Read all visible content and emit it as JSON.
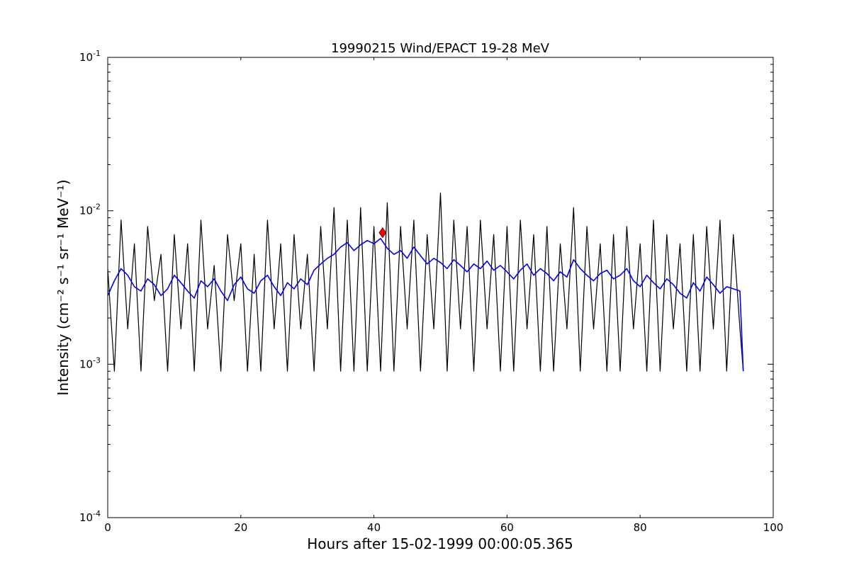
{
  "chart_data": {
    "type": "line",
    "title": "19990215 Wind/EPACT 19-28 MeV",
    "xlabel": "Hours after 15-02-1999 00:00:05.365",
    "ylabel": "Intensity (cm⁻² s⁻¹ sr⁻¹ MeV⁻¹)",
    "xlim": [
      0,
      100
    ],
    "ylim": [
      0.0001,
      0.1
    ],
    "yscale": "log",
    "grid": false,
    "x_ticks": [
      0,
      20,
      40,
      60,
      80,
      100
    ],
    "x_tick_labels": [
      "0",
      "20",
      "40",
      "60",
      "80",
      "100"
    ],
    "y_ticks": [
      0.0001,
      0.001,
      0.01,
      0.1
    ],
    "y_tick_labels": [
      {
        "base": "10",
        "exp": "-4"
      },
      {
        "base": "10",
        "exp": "-3"
      },
      {
        "base": "10",
        "exp": "-2"
      },
      {
        "base": "10",
        "exp": "-1"
      }
    ],
    "series": [
      {
        "color": "#000000",
        "style": "raw intensity",
        "x": [
          0,
          1,
          2,
          3,
          4,
          5,
          6,
          7,
          8,
          9,
          10,
          11,
          12,
          13,
          14,
          15,
          16,
          17,
          18,
          19,
          20,
          21,
          22,
          23,
          24,
          25,
          26,
          27,
          28,
          29,
          30,
          31,
          32,
          33,
          34,
          35,
          36,
          37,
          38,
          39,
          40,
          41,
          42,
          43,
          44,
          45,
          46,
          47,
          48,
          49,
          50,
          51,
          52,
          53,
          54,
          55,
          56,
          57,
          58,
          59,
          60,
          61,
          62,
          63,
          64,
          65,
          66,
          67,
          68,
          69,
          70,
          71,
          72,
          73,
          74,
          75,
          76,
          77,
          78,
          79,
          80,
          81,
          82,
          83,
          84,
          85,
          86,
          87,
          88,
          89,
          90,
          91,
          92,
          93,
          94,
          95,
          95.5
        ],
        "y": [
          0.0042,
          0.0009,
          0.0087,
          0.0017,
          0.0061,
          0.0009,
          0.0079,
          0.0026,
          0.0052,
          0.0009,
          0.007,
          0.0017,
          0.0061,
          0.0009,
          0.0087,
          0.0017,
          0.0044,
          0.0009,
          0.007,
          0.0026,
          0.0061,
          0.0009,
          0.0052,
          0.0009,
          0.0087,
          0.0017,
          0.0061,
          0.0009,
          0.007,
          0.0017,
          0.0052,
          0.0009,
          0.0079,
          0.0017,
          0.0105,
          0.0009,
          0.0087,
          0.0009,
          0.0105,
          0.0009,
          0.0079,
          0.0009,
          0.0113,
          0.0009,
          0.0079,
          0.0017,
          0.0087,
          0.0009,
          0.007,
          0.0017,
          0.0131,
          0.0009,
          0.0087,
          0.0017,
          0.0079,
          0.0009,
          0.0087,
          0.0017,
          0.007,
          0.0009,
          0.0079,
          0.0009,
          0.0087,
          0.0017,
          0.007,
          0.0009,
          0.0079,
          0.0009,
          0.0061,
          0.0017,
          0.0105,
          0.0009,
          0.0079,
          0.0017,
          0.0061,
          0.0009,
          0.007,
          0.0009,
          0.0079,
          0.0017,
          0.0061,
          0.0009,
          0.0087,
          0.0009,
          0.007,
          0.0017,
          0.0061,
          0.0009,
          0.007,
          0.0009,
          0.0079,
          0.0017,
          0.0087,
          0.0009,
          0.007,
          0.0017,
          0.0009
        ]
      },
      {
        "color": "#0000ff",
        "style": "smoothed intensity",
        "x": [
          0,
          1,
          2,
          3,
          4,
          5,
          6,
          7,
          8,
          9,
          10,
          11,
          12,
          13,
          14,
          15,
          16,
          17,
          18,
          19,
          20,
          21,
          22,
          23,
          24,
          25,
          26,
          27,
          28,
          29,
          30,
          31,
          32,
          33,
          34,
          35,
          36,
          37,
          38,
          39,
          40,
          41,
          42,
          43,
          44,
          45,
          46,
          47,
          48,
          49,
          50,
          51,
          52,
          53,
          54,
          55,
          56,
          57,
          58,
          59,
          60,
          61,
          62,
          63,
          64,
          65,
          66,
          67,
          68,
          69,
          70,
          71,
          72,
          73,
          74,
          75,
          76,
          77,
          78,
          79,
          80,
          81,
          82,
          83,
          84,
          85,
          86,
          87,
          88,
          89,
          90,
          91,
          92,
          93,
          94,
          95,
          95.5
        ],
        "y": [
          0.0028,
          0.0035,
          0.0042,
          0.0038,
          0.0032,
          0.003,
          0.0036,
          0.0033,
          0.0028,
          0.0031,
          0.0038,
          0.0034,
          0.003,
          0.0027,
          0.0035,
          0.0032,
          0.0036,
          0.003,
          0.0026,
          0.0033,
          0.0037,
          0.0031,
          0.0029,
          0.0035,
          0.0038,
          0.0032,
          0.0028,
          0.0034,
          0.0031,
          0.0036,
          0.0033,
          0.0041,
          0.0045,
          0.0049,
          0.0052,
          0.0058,
          0.0062,
          0.0055,
          0.006,
          0.0064,
          0.0061,
          0.0066,
          0.0057,
          0.0052,
          0.0055,
          0.0049,
          0.0058,
          0.0051,
          0.0045,
          0.0049,
          0.0046,
          0.0042,
          0.0048,
          0.0044,
          0.004,
          0.0045,
          0.0042,
          0.0047,
          0.0041,
          0.0044,
          0.004,
          0.0036,
          0.0041,
          0.0045,
          0.0038,
          0.0042,
          0.0039,
          0.0035,
          0.004,
          0.0037,
          0.0048,
          0.0042,
          0.0038,
          0.0035,
          0.0039,
          0.0041,
          0.0036,
          0.0038,
          0.0042,
          0.0035,
          0.0032,
          0.0038,
          0.0034,
          0.0031,
          0.0036,
          0.0033,
          0.0029,
          0.0027,
          0.0034,
          0.003,
          0.0037,
          0.0033,
          0.0029,
          0.0032,
          0.0031,
          0.003,
          0.0009
        ]
      }
    ],
    "marker": {
      "x": 41.3,
      "y": 0.0072,
      "color": "#ff0000",
      "shape": "diamond"
    }
  }
}
